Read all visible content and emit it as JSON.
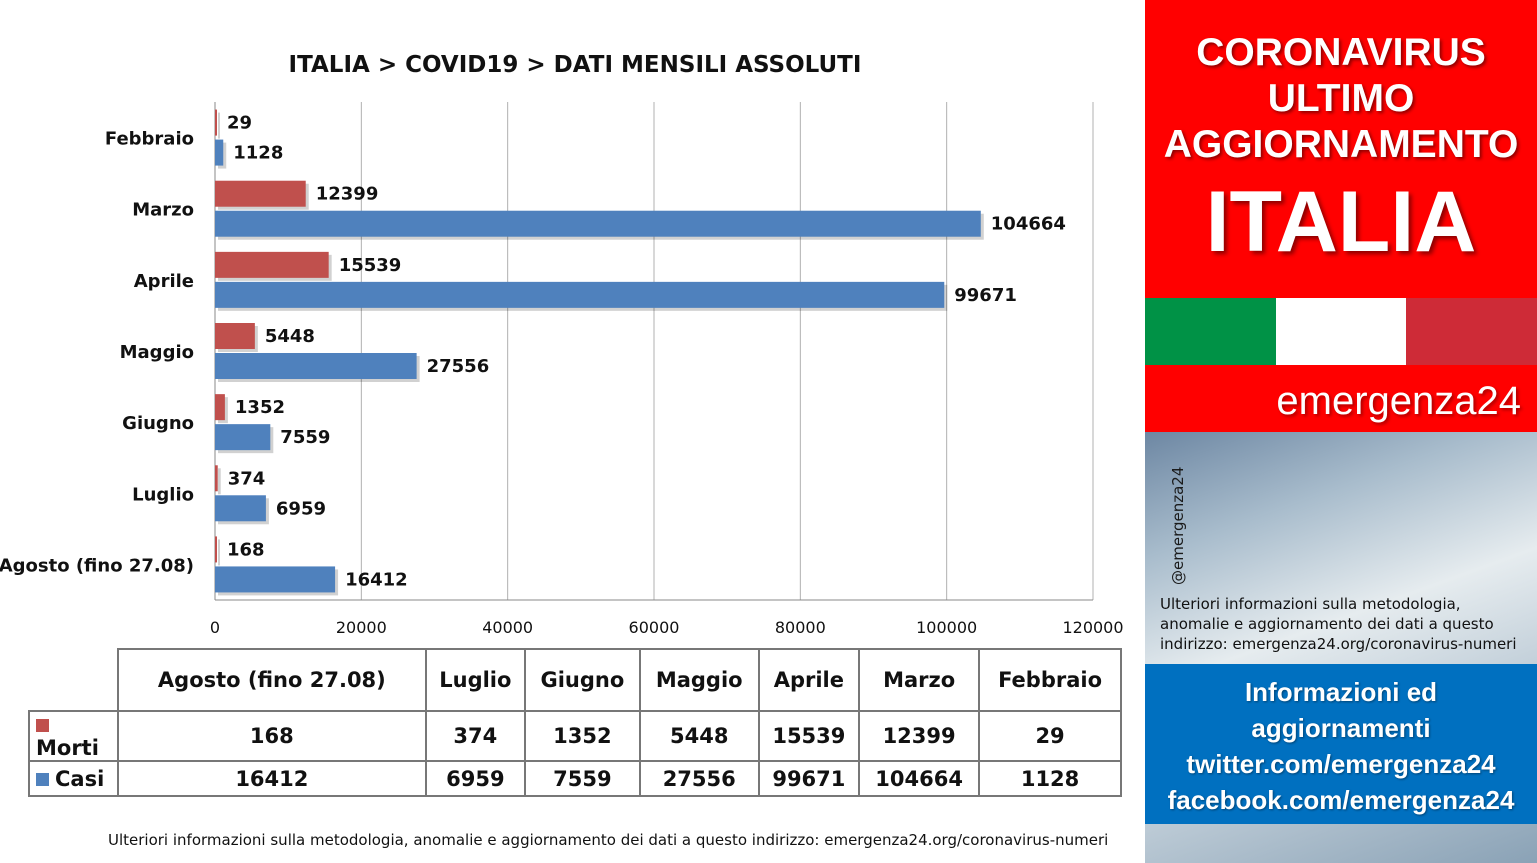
{
  "colors": {
    "morti": "#c0504d",
    "casi": "#4f81bd",
    "panel_red": "#ff0000",
    "panel_blue": "#0070c0",
    "flag_green": "#009246",
    "flag_white": "#ffffff",
    "flag_red": "#ce2b37"
  },
  "chart_data": {
    "type": "bar",
    "orientation": "horizontal",
    "title": "ITALIA >  COVID19 > DATI MENSILI  ASSOLUTI",
    "categories": [
      "Febbraio",
      "Marzo",
      "Aprile",
      "Maggio",
      "Giugno",
      "Luglio",
      "Agosto (fino 27.08)"
    ],
    "series": [
      {
        "name": "Morti",
        "values": [
          29,
          12399,
          15539,
          5448,
          1352,
          374,
          168
        ]
      },
      {
        "name": "Casi",
        "values": [
          1128,
          104664,
          99671,
          27556,
          7559,
          6959,
          16412
        ]
      }
    ],
    "xlim": [
      0,
      120000
    ],
    "xticks": [
      0,
      20000,
      40000,
      60000,
      80000,
      100000,
      120000
    ],
    "grid": true,
    "legend": "data table below chart"
  },
  "table": {
    "columns": [
      "Agosto (fino 27.08)",
      "Luglio",
      "Giugno",
      "Maggio",
      "Aprile",
      "Marzo",
      "Febbraio"
    ],
    "rows": [
      {
        "label": "Morti",
        "values": [
          "168",
          "374",
          "1352",
          "5448",
          "15539",
          "12399",
          "29"
        ]
      },
      {
        "label": "Casi",
        "values": [
          "16412",
          "6959",
          "7559",
          "27556",
          "99671",
          "104664",
          "1128"
        ]
      }
    ]
  },
  "footnote": "Ulteriori informazioni sulla metodologia, anomalie e aggiornamento dei dati a questo indirizzo: emergenza24.org/coronavirus-numeri",
  "panel": {
    "heading_lines": [
      "CORONAVIRUS",
      "ULTIMO",
      "AGGIORNAMENTO"
    ],
    "country": "ITALIA",
    "brand": "emergenza24",
    "handle": "@emergenza24",
    "note": "Ulteriori informazioni sulla metodologia, anomalie e aggiornamento dei dati a questo indirizzo: emergenza24.org/coronavirus-numeri",
    "info_lines": [
      "Informazioni ed",
      "aggiornamenti",
      "twitter.com/emergenza24",
      "facebook.com/emergenza24"
    ]
  }
}
